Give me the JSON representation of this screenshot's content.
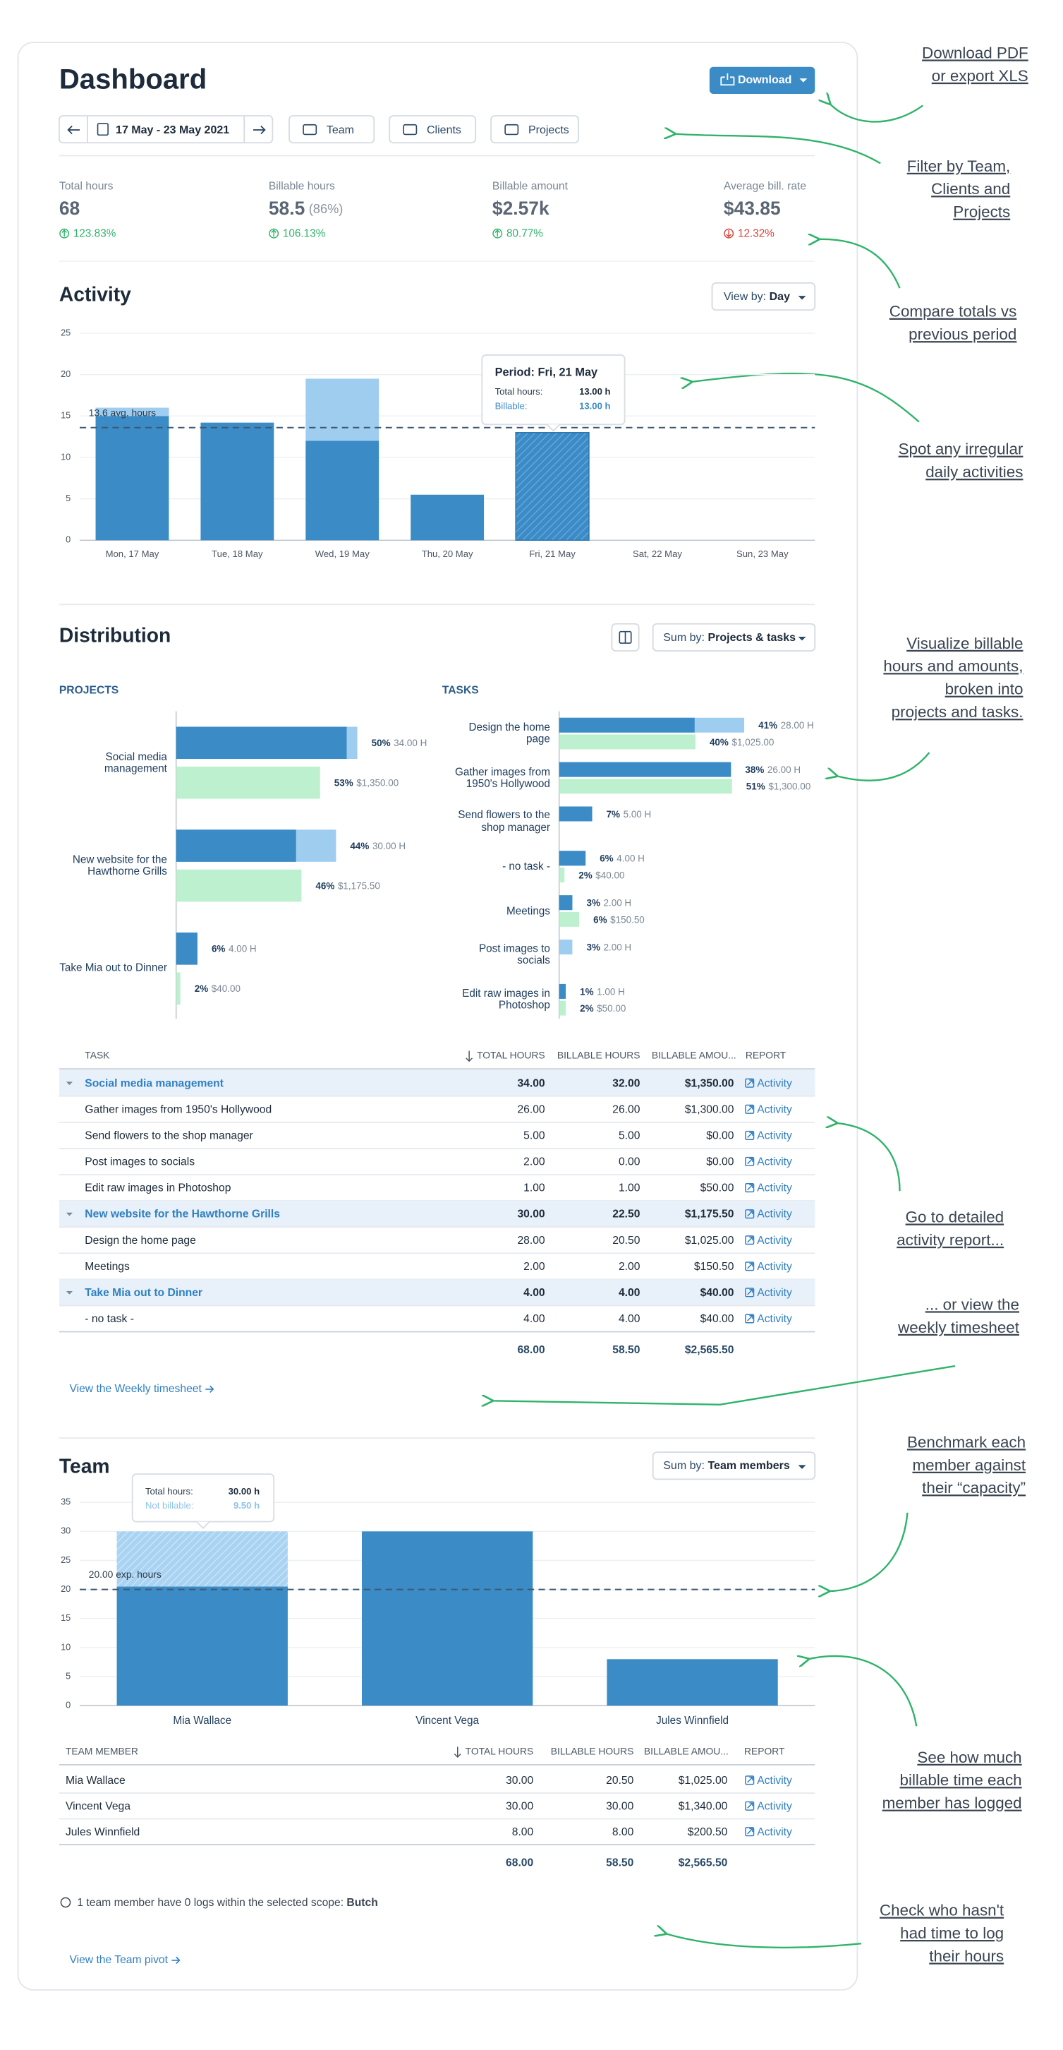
{
  "header": {
    "title": "Dashboard",
    "download": "Download",
    "date_range": "17 May - 23 May 2021",
    "filters": [
      "Team",
      "Clients",
      "Projects"
    ]
  },
  "kpis": [
    {
      "label": "Total hours",
      "value": "68",
      "change": "123.83%",
      "trend": "up"
    },
    {
      "label": "Billable hours",
      "value": "58.5",
      "extra": "(86%)",
      "change": "106.13%",
      "trend": "up"
    },
    {
      "label": "Billable amount",
      "value": "$2.57k",
      "change": "80.77%",
      "trend": "up"
    },
    {
      "label": "Average bill. rate",
      "value": "$43.85",
      "change": "12.32%",
      "trend": "down"
    }
  ],
  "activity": {
    "title": "Activity",
    "view_by": {
      "label": "View by:",
      "value": "Day"
    },
    "chart": {
      "type": "bar",
      "stacked": true,
      "categories": [
        "Mon, 17 May",
        "Tue, 18 May",
        "Wed, 19 May",
        "Thu, 20 May",
        "Fri, 21 May",
        "Sat, 22 May",
        "Sun, 23 May"
      ],
      "series": [
        {
          "color": "#3b8bc6",
          "values": [
            15,
            14.2,
            12,
            5.5,
            13,
            0,
            0
          ]
        },
        {
          "color": "#9fcdef",
          "values": [
            1,
            0,
            7.5,
            0,
            0,
            0,
            0
          ]
        }
      ],
      "ylim": [
        0,
        25
      ],
      "yticks": [
        0,
        5,
        10,
        15,
        20,
        25
      ],
      "grid": true,
      "reference_line": {
        "value": 13.6,
        "label": "13.6 avg. hours"
      },
      "tooltip": {
        "title": "Period: Fri, 21 May",
        "rows": [
          {
            "label": "Total hours:",
            "value": "13.00 h"
          },
          {
            "label": "Billable:",
            "value": "13.00 h"
          }
        ]
      }
    }
  },
  "distribution": {
    "title": "Distribution",
    "sum_by": {
      "label": "Sum by:",
      "value": "Projects & tasks"
    },
    "hours_color": "#9fcdef",
    "billable_color": "#3b8bc6",
    "amount_color": "#bdf0cf",
    "projects": {
      "heading": "PROJECTS",
      "items": [
        {
          "name": "Social media management",
          "hours": 34,
          "billable_hours": 32,
          "amount": 1350,
          "hours_share": "50%",
          "hours_label": "34.00 H",
          "amount_share": "53%",
          "amount_label": "$1,350.00"
        },
        {
          "name": "New website for the Hawthorne Grills",
          "hours": 30,
          "billable_hours": 22.5,
          "amount": 1175.5,
          "hours_share": "44%",
          "hours_label": "30.00 H",
          "amount_share": "46%",
          "amount_label": "$1,175.50"
        },
        {
          "name": "Take Mia out to Dinner",
          "hours": 4,
          "billable_hours": 4,
          "amount": 40,
          "hours_share": "6%",
          "hours_label": "4.00 H",
          "amount_share": "2%",
          "amount_label": "$40.00"
        }
      ]
    },
    "tasks": {
      "heading": "TASKS",
      "items": [
        {
          "name": "Design the home page",
          "hours": 28,
          "billable_hours": 20.5,
          "amount": 1025,
          "hours_share": "41%",
          "hours_label": "28.00 H",
          "amount_share": "40%",
          "amount_label": "$1,025.00"
        },
        {
          "name": "Gather images from 1950's Hollywood",
          "hours": 26,
          "billable_hours": 26,
          "amount": 1300,
          "hours_share": "38%",
          "hours_label": "26.00 H",
          "amount_share": "51%",
          "amount_label": "$1,300.00"
        },
        {
          "name": "Send flowers to the shop manager",
          "hours": 5,
          "billable_hours": 5,
          "amount": 0,
          "hours_share": "7%",
          "hours_label": "5.00 H"
        },
        {
          "name": "- no task -",
          "hours": 4,
          "billable_hours": 4,
          "amount": 40,
          "hours_share": "6%",
          "hours_label": "4.00 H",
          "amount_share": "2%",
          "amount_label": "$40.00"
        },
        {
          "name": "Meetings",
          "hours": 2,
          "billable_hours": 2,
          "amount": 150.5,
          "hours_share": "3%",
          "hours_label": "2.00 H",
          "amount_share": "6%",
          "amount_label": "$150.50"
        },
        {
          "name": "Post images to socials",
          "hours": 2,
          "billable_hours": 0,
          "amount": 0,
          "hours_share": "3%",
          "hours_label": "2.00 H"
        },
        {
          "name": "Edit raw images in Photoshop",
          "hours": 1,
          "billable_hours": 1,
          "amount": 50,
          "hours_share": "1%",
          "hours_label": "1.00 H",
          "amount_share": "2%",
          "amount_label": "$50.00"
        }
      ]
    }
  },
  "tasks_table": {
    "columns": [
      "TASK",
      "TOTAL HOURS",
      "BILLABLE HOURS",
      "BILLABLE AMOU...",
      "REPORT"
    ],
    "rows": [
      {
        "kind": "project",
        "cells": [
          "Social media management",
          "34.00",
          "32.00",
          "$1,350.00",
          "Activity"
        ]
      },
      {
        "kind": "task",
        "cells": [
          "Gather images from 1950's Hollywood",
          "26.00",
          "26.00",
          "$1,300.00",
          "Activity"
        ]
      },
      {
        "kind": "task",
        "cells": [
          "Send flowers to the shop manager",
          "5.00",
          "5.00",
          "$0.00",
          "Activity"
        ]
      },
      {
        "kind": "task",
        "cells": [
          "Post images to socials",
          "2.00",
          "0.00",
          "$0.00",
          "Activity"
        ]
      },
      {
        "kind": "task",
        "cells": [
          "Edit raw images in Photoshop",
          "1.00",
          "1.00",
          "$50.00",
          "Activity"
        ]
      },
      {
        "kind": "project",
        "cells": [
          "New website for the Hawthorne Grills",
          "30.00",
          "22.50",
          "$1,175.50",
          "Activity"
        ]
      },
      {
        "kind": "task",
        "cells": [
          "Design the home page",
          "28.00",
          "20.50",
          "$1,025.00",
          "Activity"
        ]
      },
      {
        "kind": "task",
        "cells": [
          "Meetings",
          "2.00",
          "2.00",
          "$150.50",
          "Activity"
        ]
      },
      {
        "kind": "project",
        "cells": [
          "Take Mia out to Dinner",
          "4.00",
          "4.00",
          "$40.00",
          "Activity"
        ]
      },
      {
        "kind": "task",
        "cells": [
          "- no task -",
          "4.00",
          "4.00",
          "$40.00",
          "Activity"
        ]
      }
    ],
    "totals": [
      "68.00",
      "58.50",
      "$2,565.50"
    ]
  },
  "timesheet_link": "View the Weekly timesheet",
  "team": {
    "title": "Team",
    "sum_by": {
      "label": "Sum by:",
      "value": "Team members"
    },
    "chart": {
      "type": "bar",
      "stacked": true,
      "categories": [
        "Mia Wallace",
        "Vincent Vega",
        "Jules Winnfield"
      ],
      "series": [
        {
          "color": "#3b8bc6",
          "values": [
            20.5,
            30,
            8
          ]
        },
        {
          "color": "#a9d3f2",
          "values": [
            9.5,
            0,
            0
          ]
        }
      ],
      "ylim": [
        0,
        35
      ],
      "yticks": [
        0,
        5,
        10,
        15,
        20,
        25,
        30,
        35
      ],
      "grid": true,
      "reference_line": {
        "value": 20,
        "label": "20.00 exp. hours"
      },
      "tooltip": {
        "rows": [
          {
            "label": "Total hours:",
            "value": "30.00 h"
          },
          {
            "label": "Not billable:",
            "value": "9.50 h"
          }
        ]
      }
    },
    "table": {
      "columns": [
        "TEAM MEMBER",
        "TOTAL HOURS",
        "BILLABLE HOURS",
        "BILLABLE AMOU...",
        "REPORT"
      ],
      "rows": [
        {
          "kind": "member",
          "cells": [
            "Mia Wallace",
            "30.00",
            "20.50",
            "$1,025.00",
            "Activity"
          ]
        },
        {
          "kind": "member",
          "cells": [
            "Vincent Vega",
            "30.00",
            "30.00",
            "$1,340.00",
            "Activity"
          ]
        },
        {
          "kind": "member",
          "cells": [
            "Jules Winnfield",
            "8.00",
            "8.00",
            "$200.50",
            "Activity"
          ]
        }
      ],
      "totals": [
        "68.00",
        "58.50",
        "$2,565.50"
      ]
    },
    "note": {
      "text": "1 team member have 0 logs within the selected scope:",
      "name": "Butch"
    },
    "pivot_link": "View the Team pivot"
  },
  "annotations": [
    {
      "lines": [
        "Download PDF",
        "or export XLS"
      ]
    },
    {
      "lines": [
        "Filter by Team,",
        "Clients and ",
        "Projects"
      ]
    },
    {
      "lines": [
        "Compare totals vs",
        "previous period"
      ]
    },
    {
      "lines": [
        "Spot any irregular",
        "daily activities"
      ]
    },
    {
      "lines": [
        "Visualize billable",
        "hours and amounts,",
        "broken into",
        "projects and tasks."
      ]
    },
    {
      "lines": [
        "Go to detailed",
        "activity report..."
      ]
    },
    {
      "lines": [
        "... or view the",
        "weekly timesheet"
      ]
    },
    {
      "lines": [
        "Benchmark each",
        "member against",
        "their “capacity”"
      ]
    },
    {
      "lines": [
        "See how much",
        "billable time each",
        "member has logged"
      ]
    },
    {
      "lines": [
        "Check who hasn't",
        "had time to log",
        "their hours"
      ]
    }
  ]
}
